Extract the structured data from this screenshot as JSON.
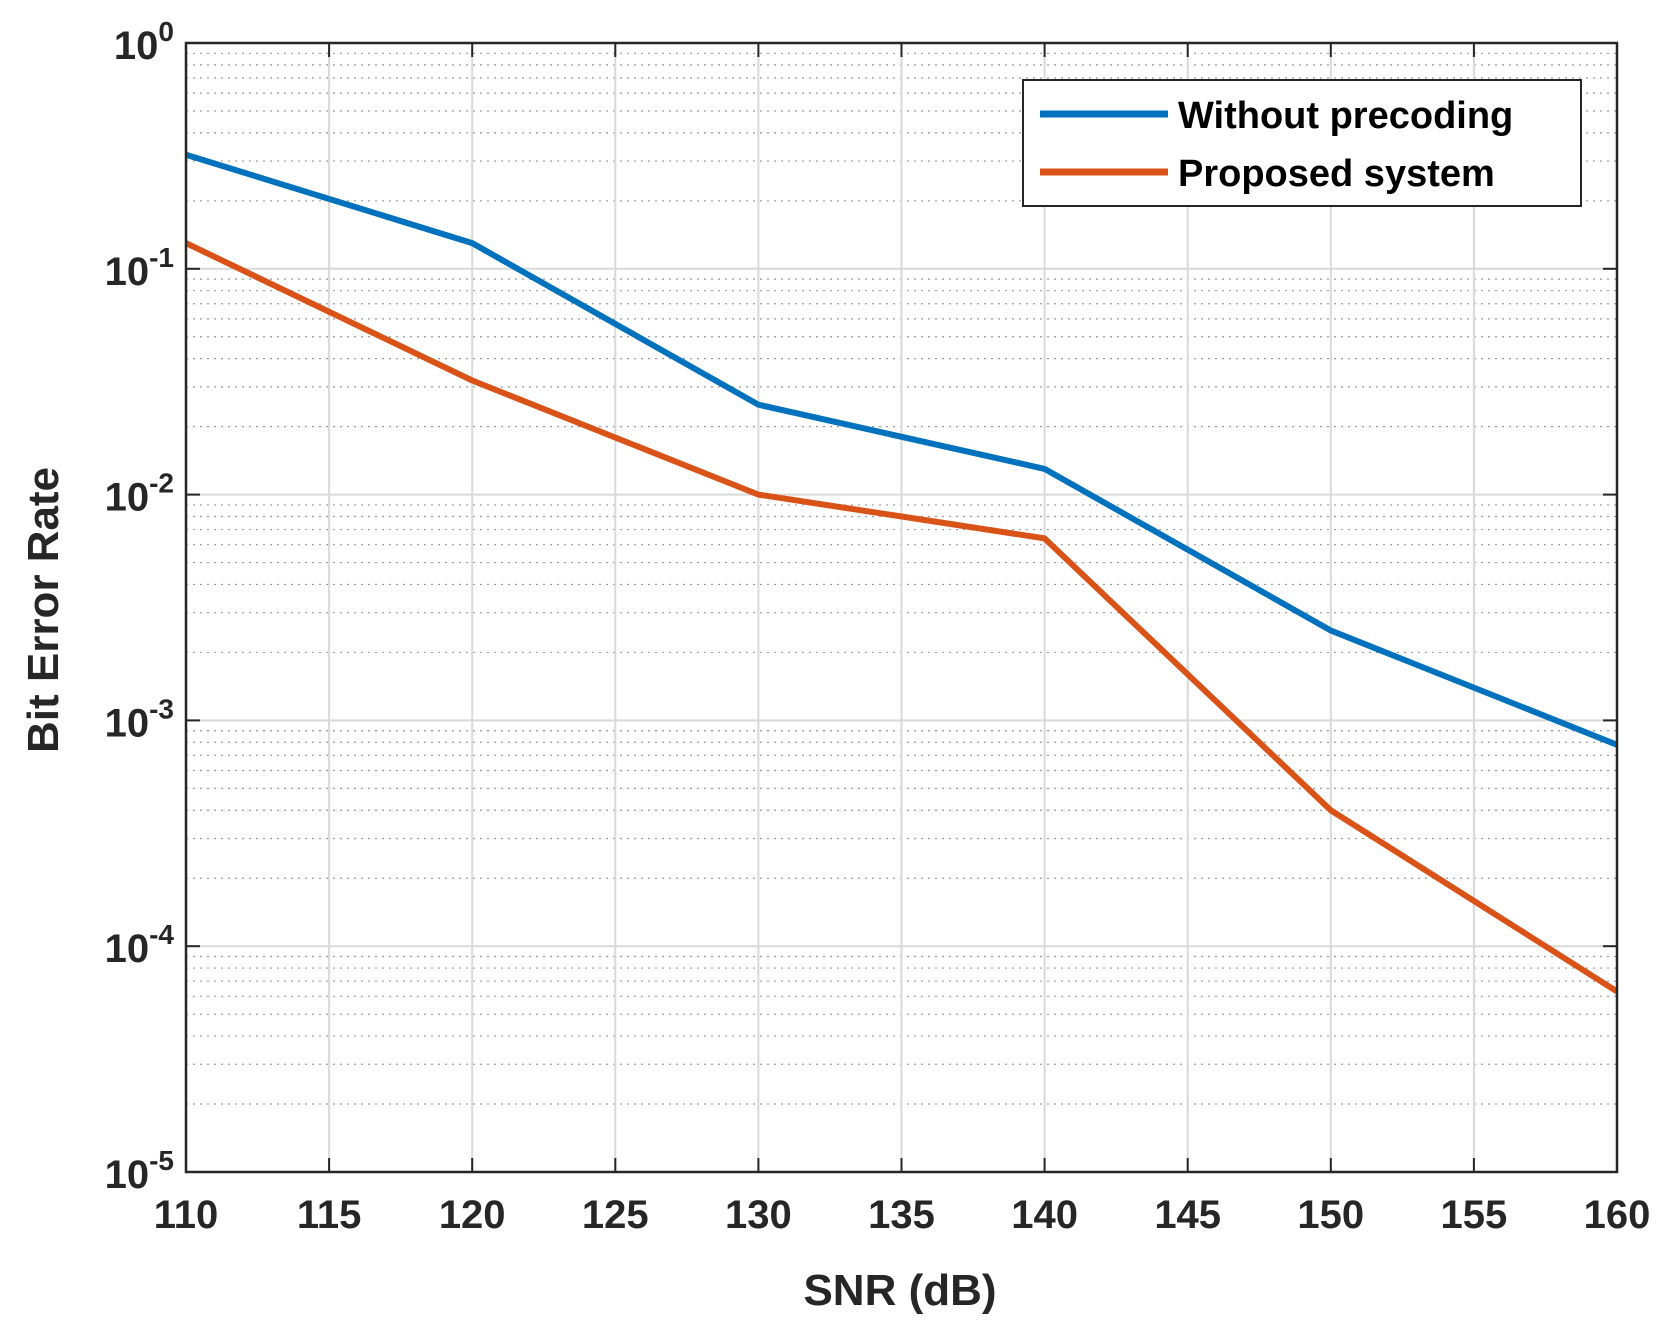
{
  "chart_data": {
    "type": "line",
    "title": "",
    "xlabel": "SNR (dB)",
    "ylabel": "Bit Error Rate",
    "xlim": [
      110,
      160
    ],
    "ylim": [
      1e-05,
      1
    ],
    "yscale": "log",
    "grid": true,
    "minor_grid": true,
    "legend_location": "top-right",
    "x_ticks": [
      110,
      115,
      120,
      125,
      130,
      135,
      140,
      145,
      150,
      155,
      160
    ],
    "y_ticks": [
      {
        "value": 1e-05,
        "base": "10",
        "exp": "-5"
      },
      {
        "value": 0.0001,
        "base": "10",
        "exp": "-4"
      },
      {
        "value": 0.001,
        "base": "10",
        "exp": "-3"
      },
      {
        "value": 0.01,
        "base": "10",
        "exp": "-2"
      },
      {
        "value": 0.1,
        "base": "10",
        "exp": "-1"
      },
      {
        "value": 1,
        "base": "10",
        "exp": "0"
      }
    ],
    "series": [
      {
        "name": "Without precoding",
        "color": "#0072BD",
        "x": [
          110,
          120,
          130,
          140,
          150,
          160
        ],
        "values": [
          0.32,
          0.13,
          0.025,
          0.013,
          0.0025,
          0.00078
        ]
      },
      {
        "name": "Proposed system",
        "color": "#D95319",
        "x": [
          110,
          120,
          130,
          140,
          150,
          160
        ],
        "values": [
          0.13,
          0.032,
          0.01,
          0.0064,
          0.0004,
          6.3e-05
        ]
      }
    ]
  }
}
